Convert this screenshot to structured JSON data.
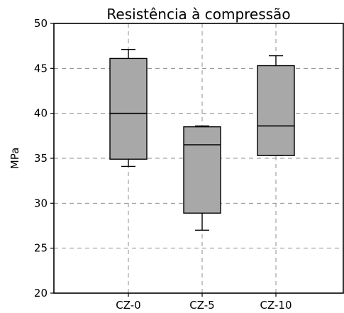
{
  "chart_data": {
    "type": "box",
    "title": "Resistência à compressão",
    "xlabel": "",
    "ylabel": "MPa",
    "ylim": [
      20,
      50
    ],
    "yticks": [
      20,
      25,
      30,
      35,
      40,
      45,
      50
    ],
    "grid": true,
    "categories": [
      "CZ-0",
      "CZ-5",
      "CZ-10"
    ],
    "boxes": [
      {
        "category": "CZ-0",
        "whisker_low": 34.1,
        "q1": 34.9,
        "median": 40.0,
        "q3": 46.1,
        "whisker_high": 47.1
      },
      {
        "category": "CZ-5",
        "whisker_low": 27.0,
        "q1": 28.9,
        "median": 36.5,
        "q3": 38.5,
        "whisker_high": 38.6
      },
      {
        "category": "CZ-10",
        "whisker_low": 35.3,
        "q1": 35.3,
        "median": 38.6,
        "q3": 45.3,
        "whisker_high": 46.4
      }
    ]
  }
}
